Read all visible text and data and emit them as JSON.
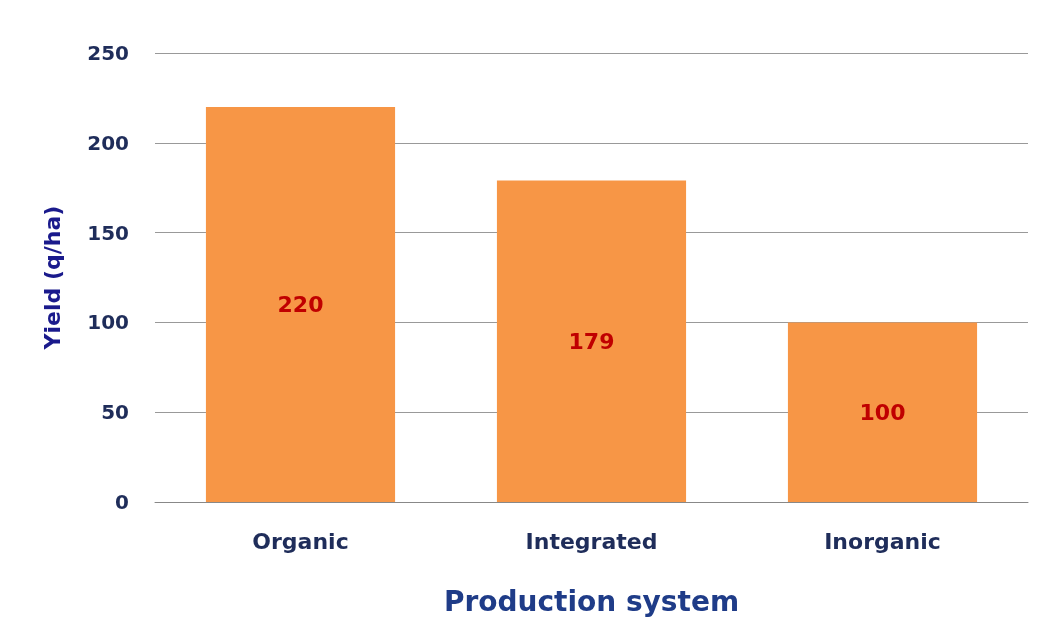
{
  "chart_data": {
    "type": "bar",
    "xlabel": "Production system",
    "ylabel": "Yield (q/ha)",
    "categories": [
      "Organic",
      "Integrated",
      "Inorganic"
    ],
    "values": [
      220,
      179,
      100
    ],
    "color": "#f79646",
    "ylim": [
      0,
      250
    ],
    "yticks": [
      0,
      50,
      100,
      150,
      200,
      250
    ],
    "grid": "y",
    "data_labels": true
  }
}
